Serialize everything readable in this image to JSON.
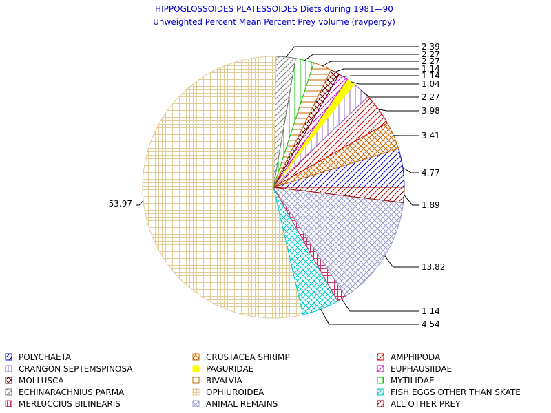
{
  "chart_data": {
    "type": "pie",
    "title": "HIPPOGLOSSOIDES PLATESSOIDES Diets during 1981—90",
    "subtitle": "Unweighted Percent Mean Percent Prey  volume (ravperpy)",
    "slices": [
      {
        "name": "POLYCHAETA",
        "value": 4.77,
        "label": "4.77",
        "color": "#0000cc",
        "pattern": "diag-up"
      },
      {
        "name": "CRUSTACEA SHRIMP",
        "value": 3.41,
        "label": "3.41",
        "color": "#cc6600",
        "pattern": "cross-diag"
      },
      {
        "name": "AMPHIPODA",
        "value": 3.98,
        "label": "3.98",
        "color": "#cc0000",
        "pattern": "diag-up"
      },
      {
        "name": "CRANGON SEPTEMSPINOSA",
        "value": 2.27,
        "label": "2.27",
        "color": "#9966cc",
        "pattern": "vertical"
      },
      {
        "name": "PAGURIDAE",
        "value": 1.04,
        "label": "1.04",
        "color": "#ffff00",
        "pattern": "solid"
      },
      {
        "name": "EUPHAUSIIDAE",
        "value": 1.14,
        "label": "1.14",
        "color": "#cc00cc",
        "pattern": "diag-up"
      },
      {
        "name": "MOLLUSCA",
        "value": 1.14,
        "label": "1.14",
        "color": "#660000",
        "pattern": "cross-diag"
      },
      {
        "name": "BIVALVIA",
        "value": 2.27,
        "label": "2.27",
        "color": "#cc6600",
        "pattern": "horizontal"
      },
      {
        "name": "MYTILIDAE",
        "value": 2.27,
        "label": "2.27",
        "color": "#00cc00",
        "pattern": "vertical"
      },
      {
        "name": "ECHINARACHNIUS PARMA",
        "value": 2.39,
        "label": "2.39",
        "color": "#777777",
        "pattern": "diag-up"
      },
      {
        "name": "OPHIUROIDEA",
        "value": 53.97,
        "label": "53.97",
        "color": "#e0cc99",
        "pattern": "grid"
      },
      {
        "name": "FISH EGGS OTHER THAN SKATE",
        "value": 4.54,
        "label": "4.54",
        "color": "#00cccc",
        "pattern": "cross-diag"
      },
      {
        "name": "MERLUCCIUS BILINEARIS",
        "value": 1.14,
        "label": "1.14",
        "color": "#cc3366",
        "pattern": "grid"
      },
      {
        "name": "ANIMAL REMAINS",
        "value": 13.82,
        "label": "13.82",
        "color": "#9999cc",
        "pattern": "cross-diag"
      },
      {
        "name": "ALL OTHER PREY",
        "value": 1.89,
        "label": "1.89",
        "color": "#990000",
        "pattern": "diag-up"
      }
    ],
    "legend_position": "bottom"
  }
}
